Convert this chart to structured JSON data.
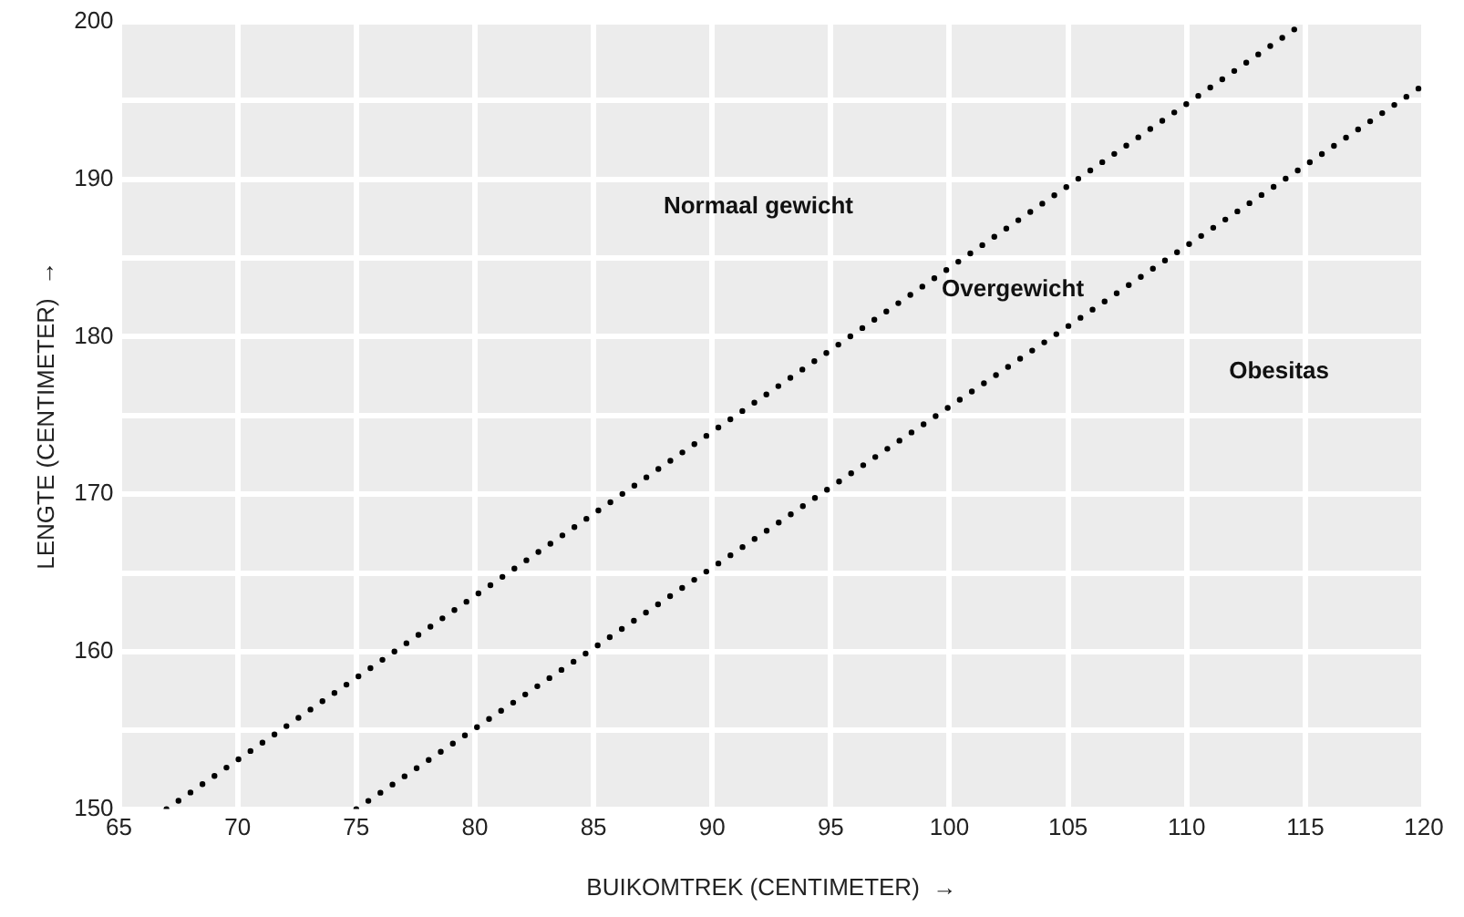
{
  "chart_data": {
    "type": "line",
    "xlabel": "BUIKOMTREK (CENTIMETER)  →",
    "ylabel": "LENGTE (CENTIMETER)  →",
    "series": [
      {
        "color": "#000000",
        "x": [
          67,
          115
        ],
        "values": [
          150,
          200
        ],
        "line_style": "dotted"
      },
      {
        "color": "#000000",
        "x": [
          75,
          120
        ],
        "values": [
          150,
          196
        ],
        "line_style": "dotted"
      }
    ],
    "xlim": [
      65,
      120
    ],
    "xticks": [
      65,
      70,
      75,
      80,
      85,
      90,
      95,
      100,
      105,
      110,
      115,
      120
    ],
    "ylim": [
      150,
      200
    ],
    "yticks": [
      150,
      {
        "value": 155,
        "label": null
      },
      160,
      {
        "value": 165,
        "label": null
      },
      170,
      {
        "value": 175,
        "label": null
      },
      180,
      {
        "value": 185,
        "label": null
      },
      190,
      {
        "value": 195,
        "label": null
      },
      200
    ],
    "grid": true,
    "marker": "none",
    "legend": false,
    "annotations": [
      "Normaal gewicht",
      "Overgewicht",
      "Obesitas"
    ]
  }
}
